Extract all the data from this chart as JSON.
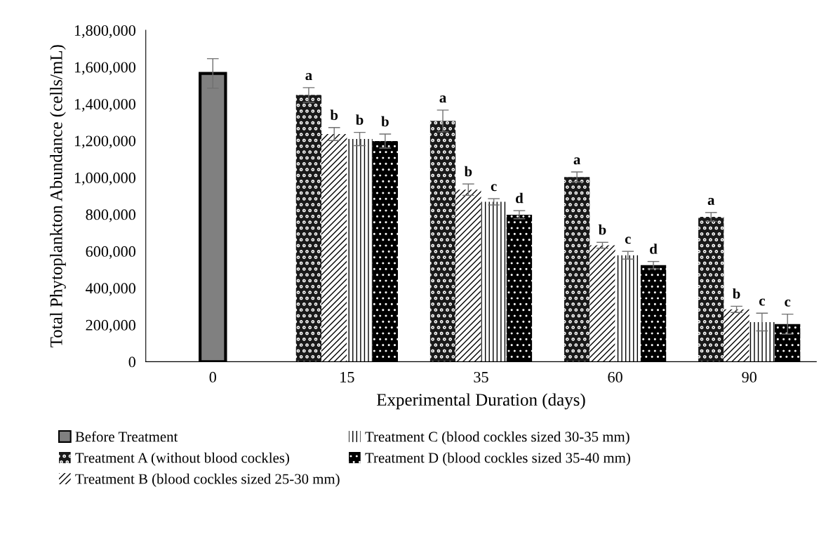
{
  "chart_data": {
    "type": "bar",
    "xlabel": "Experimental Duration (days)",
    "ylabel": "Total Phytoplankton Abundance (cells/mL)",
    "categories": [
      "0",
      "15",
      "35",
      "60",
      "90"
    ],
    "series": [
      {
        "name": "Before Treatment",
        "color": "#808080",
        "values": [
          1565000,
          null,
          null,
          null,
          null
        ],
        "errors": [
          80000,
          null,
          null,
          null,
          null
        ]
      },
      {
        "name": "Treatment A (without blood cockles)",
        "color": "#1a1a1a",
        "values": [
          null,
          1448000,
          1307000,
          1003000,
          786000
        ],
        "errors": [
          null,
          40000,
          59000,
          27000,
          24000
        ],
        "value_labels": [
          null,
          "a",
          "a",
          "a",
          "a"
        ]
      },
      {
        "name": "Treatment B (blood cockles sized 25-30 mm)",
        "color": "#ffffff",
        "values": [
          null,
          1236000,
          934000,
          632000,
          284000
        ],
        "errors": [
          null,
          35000,
          31000,
          16000,
          17000
        ],
        "value_labels": [
          null,
          "b",
          "b",
          "b",
          "b"
        ]
      },
      {
        "name": "Treatment C (blood cockles sized 30-35 mm)",
        "color": "#ffffff",
        "values": [
          null,
          1209000,
          868000,
          578000,
          215000
        ],
        "errors": [
          null,
          36000,
          17000,
          21000,
          48000
        ],
        "value_labels": [
          null,
          "b",
          "c",
          "c",
          "c"
        ]
      },
      {
        "name": "Treatment D (blood cockles sized 35-40 mm)",
        "color": "#000000",
        "values": [
          null,
          1198000,
          798000,
          524000,
          204000
        ],
        "errors": [
          null,
          38000,
          22000,
          20000,
          54000
        ],
        "value_labels": [
          null,
          "b",
          "d",
          "d",
          "c"
        ]
      }
    ],
    "ylim": [
      0,
      1800000
    ],
    "yticks": [
      {
        "value": 0,
        "label": "0"
      },
      {
        "value": 200000,
        "label": "200,000"
      },
      {
        "value": 400000,
        "label": "400,000"
      },
      {
        "value": 600000,
        "label": "600,000"
      },
      {
        "value": 800000,
        "label": "800,000"
      },
      {
        "value": 1000000,
        "label": "1,000,000"
      },
      {
        "value": 1200000,
        "label": "1,200,000"
      },
      {
        "value": 1400000,
        "label": "1,400,000"
      },
      {
        "value": 1600000,
        "label": "1,600,000"
      },
      {
        "value": 1800000,
        "label": "1,800,000"
      }
    ],
    "grid": false,
    "legend": "bottom"
  }
}
